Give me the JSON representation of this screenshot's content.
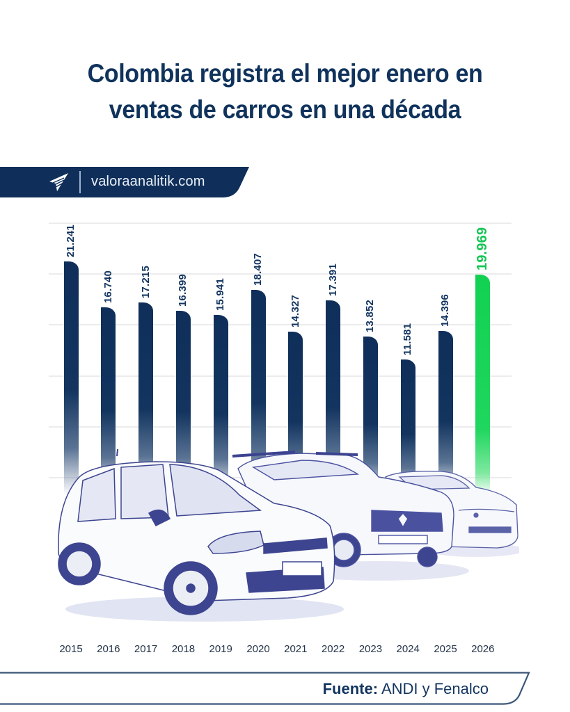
{
  "header": {
    "title_line1": "Colombia registra el mejor enero en",
    "title_line2": "ventas de carros en una década"
  },
  "brand": {
    "logo_icon": "paper-plane-logo-icon",
    "url": "valoraanalitik.com",
    "band_color": "#0f2f5a"
  },
  "colors": {
    "navy": "#12345f",
    "green": "#16c655",
    "title": "#10335c"
  },
  "chart_data": {
    "type": "bar",
    "title": "Colombia registra el mejor enero en ventas de carros en una década",
    "xlabel": "",
    "ylabel": "",
    "categories": [
      "2015",
      "2016",
      "2017",
      "2018",
      "2019",
      "2020",
      "2021",
      "2022",
      "2023",
      "2024",
      "2025",
      "2026"
    ],
    "values": [
      21241,
      16740,
      17215,
      16399,
      15941,
      18407,
      14327,
      17391,
      13852,
      11581,
      14396,
      19969
    ],
    "value_labels": [
      "21.241",
      "16.740",
      "17.215",
      "16.399",
      "15.941",
      "18.407",
      "14.327",
      "17.391",
      "13.852",
      "11.581",
      "14.396",
      "19.969"
    ],
    "highlight": {
      "category": "2026",
      "color": "#16c655"
    },
    "bar_color": "#12345f",
    "grid": true,
    "axis_labels_shown": false,
    "ylim": [
      0,
      25000
    ]
  },
  "illustration": {
    "description": "Pencil-sketch illustration of three cars (hatchback, SUV, sedan)"
  },
  "footer": {
    "source_label": "Fuente:",
    "source_value": "ANDI y Fenalco"
  }
}
